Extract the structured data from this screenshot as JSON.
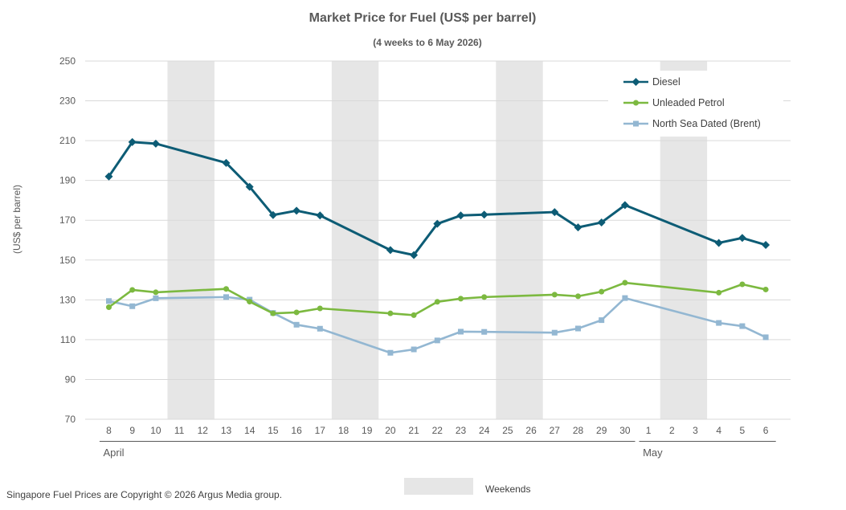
{
  "chart_data": {
    "type": "line",
    "title": "Market Price for Fuel (US$ per barrel)",
    "subtitle": "(4 weeks to 6 May 2026)",
    "ylabel": "(US$ per barrel)",
    "ylim": [
      70,
      250
    ],
    "yticks": [
      70,
      90,
      110,
      130,
      150,
      170,
      190,
      210,
      230,
      250
    ],
    "grid": true,
    "legend_position": "top-right",
    "categories": [
      "8",
      "9",
      "10",
      "11",
      "12",
      "13",
      "14",
      "15",
      "16",
      "17",
      "18",
      "19",
      "20",
      "21",
      "22",
      "23",
      "24",
      "25",
      "26",
      "27",
      "28",
      "29",
      "30",
      "1",
      "2",
      "3",
      "4",
      "5",
      "6"
    ],
    "month_labels": [
      {
        "label": "April",
        "start": 0,
        "end": 22
      },
      {
        "label": "May",
        "start": 23,
        "end": 28
      }
    ],
    "weekend_bands": [
      [
        3,
        4
      ],
      [
        10,
        11
      ],
      [
        17,
        18
      ],
      [
        24,
        25
      ]
    ],
    "weekend_label": "Weekends",
    "series": [
      {
        "name": "Diesel",
        "color": "#0d5c75",
        "marker": "diamond",
        "values": [
          192,
          209.3,
          208.5,
          null,
          null,
          198.8,
          186.8,
          172.6,
          174.8,
          172.4,
          null,
          null,
          155,
          152.5,
          168.2,
          172.4,
          172.8,
          null,
          null,
          174.1,
          166.4,
          168.9,
          177.6,
          null,
          null,
          null,
          158.6,
          161.1,
          157.6
        ]
      },
      {
        "name": "Unleaded Petrol",
        "color": "#7cb940",
        "marker": "circle",
        "values": [
          126.3,
          135,
          133.8,
          null,
          null,
          135.5,
          129.1,
          123.2,
          123.7,
          125.7,
          null,
          null,
          123.2,
          122.3,
          129,
          130.6,
          131.4,
          null,
          null,
          132.6,
          131.8,
          134.1,
          138.6,
          null,
          null,
          null,
          133.6,
          137.8,
          135.2
        ]
      },
      {
        "name": "North Sea Dated (Brent)",
        "color": "#93b7d2",
        "marker": "square",
        "values": [
          129.4,
          126.8,
          130.8,
          null,
          null,
          131.4,
          130.1,
          123.4,
          117.5,
          115.5,
          null,
          null,
          103.4,
          105.1,
          109.6,
          114,
          113.9,
          null,
          null,
          113.5,
          115.6,
          119.8,
          130.9,
          null,
          null,
          null,
          118.4,
          116.8,
          111.2
        ]
      }
    ]
  },
  "footer": {
    "copyright": "Singapore Fuel Prices are Copyright © 2026 Argus Media group."
  }
}
